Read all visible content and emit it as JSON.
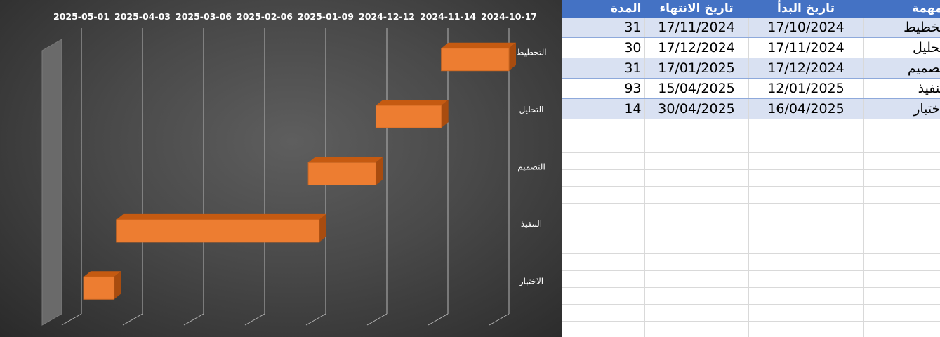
{
  "chart_data": {
    "type": "bar",
    "subtype": "3d-gantt-horizontal",
    "x_axis_reversed": true,
    "xlim": [
      "2024-10-17",
      "2025-05-01"
    ],
    "x_tick_labels": [
      "2025-05-01",
      "2025-04-03",
      "2025-03-06",
      "2025-02-06",
      "2025-01-09",
      "2024-12-12",
      "2024-11-14",
      "2024-10-17"
    ],
    "categories": [
      "التخطيط",
      "التحليل",
      "التصميم",
      "التنفيذ",
      "الاختبار"
    ],
    "series": [
      {
        "start": [
          "2024-10-17",
          "2024-11-17",
          "2024-12-17",
          "2025-01-12",
          "2025-04-16"
        ],
        "end": [
          "2024-11-17",
          "2024-12-17",
          "2025-01-17",
          "2025-04-15",
          "2025-04-30"
        ],
        "color": "#ed7d31"
      }
    ],
    "grid": true,
    "background": "#4a4a4a"
  },
  "sheet": {
    "headers": {
      "task": "المهمة",
      "start": "تاريخ البدأ",
      "end": "تاريخ الانتهاء",
      "duration": "المدة"
    },
    "rows": [
      {
        "task": "التخطيط",
        "start": "17/10/2024",
        "end": "17/11/2024",
        "duration": "31"
      },
      {
        "task": "التحليل",
        "start": "17/11/2024",
        "end": "17/12/2024",
        "duration": "30"
      },
      {
        "task": "التصميم",
        "start": "17/12/2024",
        "end": "17/01/2025",
        "duration": "31"
      },
      {
        "task": "التنفيذ",
        "start": "12/01/2025",
        "end": "15/04/2025",
        "duration": "93"
      },
      {
        "task": "الاختبار",
        "start": "16/04/2025",
        "end": "30/04/2025",
        "duration": "14"
      }
    ],
    "header_color": "#4472c4",
    "band_color": "#d9e1f2"
  }
}
